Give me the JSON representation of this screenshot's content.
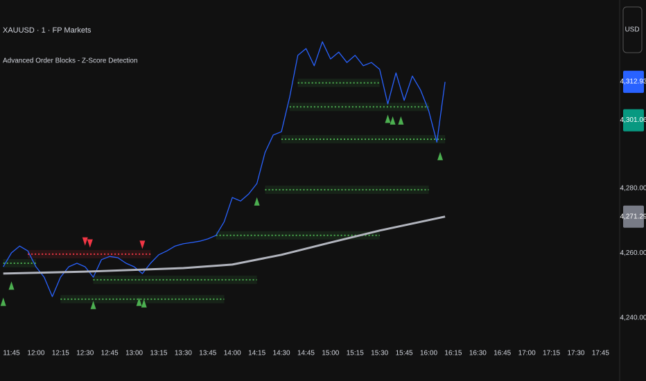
{
  "chart_data": {
    "type": "price",
    "title": "XAUUSD · 1 · FP Markets",
    "subtitle": "Advanced Order Blocks - Z-Score Detection",
    "currency": "USD",
    "xlim": [
      "11:38",
      "17:55"
    ],
    "xticks": [
      "11:45",
      "12:00",
      "12:15",
      "12:30",
      "12:45",
      "13:00",
      "13:15",
      "13:30",
      "13:45",
      "14:00",
      "14:15",
      "14:30",
      "14:45",
      "15:00",
      "15:15",
      "15:30",
      "15:45",
      "16:00",
      "16:15",
      "16:30",
      "16:45",
      "17:00",
      "17:15",
      "17:30",
      "17:45"
    ],
    "ylim": [
      4235.5,
      4338.2
    ],
    "yticks": [
      {
        "value": 4240,
        "label": "4,240.00"
      },
      {
        "value": 4260,
        "label": "4,260.00"
      },
      {
        "value": 4280,
        "label": "4,280.00"
      }
    ],
    "series": [
      {
        "color": "#2962ff",
        "x": [
          "11:40",
          "11:45",
          "11:50",
          "11:55",
          "12:00",
          "12:05",
          "12:10",
          "12:15",
          "12:20",
          "12:25",
          "12:30",
          "12:35",
          "12:40",
          "12:45",
          "12:50",
          "12:55",
          "13:00",
          "13:05",
          "13:10",
          "13:15",
          "13:20",
          "13:25",
          "13:30",
          "13:35",
          "13:40",
          "13:45",
          "13:50",
          "13:55",
          "14:00",
          "14:05",
          "14:10",
          "14:15",
          "14:20",
          "14:25",
          "14:30",
          "14:35",
          "14:40",
          "14:45",
          "14:50",
          "14:55",
          "15:00",
          "15:05",
          "15:10",
          "15:15",
          "15:20",
          "15:25",
          "15:30",
          "15:35",
          "15:40",
          "15:45",
          "15:50",
          "15:55",
          "16:00",
          "16:05",
          "16:10"
        ],
        "values": [
          4255.8,
          4260.1,
          4262.2,
          4260.7,
          4255.8,
          4252.6,
          4246.6,
          4252.6,
          4255.8,
          4256.9,
          4255.8,
          4252.6,
          4258.0,
          4259.0,
          4258.6,
          4256.9,
          4255.8,
          4253.7,
          4256.9,
          4259.5,
          4260.7,
          4262.2,
          4262.9,
          4263.3,
          4263.7,
          4264.4,
          4265.5,
          4269.7,
          4277.2,
          4276.1,
          4278.3,
          4281.5,
          4291.1,
          4296.5,
          4297.5,
          4308.2,
          4321.1,
          4323.2,
          4317.9,
          4325.3,
          4320.0,
          4322.1,
          4318.9,
          4321.1,
          4317.9,
          4318.9,
          4316.8,
          4306.1,
          4315.7,
          4307.2,
          4314.7,
          4310.4,
          4304.0,
          4294.3,
          4312.9
        ]
      },
      {
        "color": "#b2b5be",
        "x": [
          "11:40",
          "12:30",
          "13:30",
          "14:00",
          "14:30",
          "15:00",
          "15:30",
          "16:10"
        ],
        "values": [
          4253.7,
          4254.3,
          4255.4,
          4256.5,
          4259.5,
          4263.3,
          4267.0,
          4271.29
        ]
      }
    ],
    "zones": [
      {
        "start": "14:40",
        "end": "15:30",
        "level": 4312.6,
        "color": "#4caf50"
      },
      {
        "start": "14:35",
        "end": "16:00",
        "level": 4305.2,
        "color": "#4caf50"
      },
      {
        "start": "14:30",
        "end": "16:10",
        "level": 4295.2,
        "color": "#4caf50"
      },
      {
        "start": "14:20",
        "end": "16:00",
        "level": 4279.6,
        "color": "#4caf50"
      },
      {
        "start": "13:50",
        "end": "15:30",
        "level": 4265.5,
        "color": "#4caf50"
      },
      {
        "start": "12:35",
        "end": "14:15",
        "level": 4251.8,
        "color": "#4caf50"
      },
      {
        "start": "12:15",
        "end": "13:55",
        "level": 4245.8,
        "color": "#4caf50"
      },
      {
        "start": "11:40",
        "end": "12:00",
        "level": 4256.9,
        "color": "#4caf50"
      },
      {
        "start": "11:55",
        "end": "13:10",
        "level": 4259.7,
        "color": "#f23645"
      }
    ],
    "signals": [
      {
        "x": "11:40",
        "value": 4245.0,
        "direction": "up"
      },
      {
        "x": "11:45",
        "value": 4250.0,
        "direction": "up"
      },
      {
        "x": "12:35",
        "value": 4244.0,
        "direction": "up"
      },
      {
        "x": "13:03",
        "value": 4245.0,
        "direction": "up"
      },
      {
        "x": "13:06",
        "value": 4244.5,
        "direction": "up"
      },
      {
        "x": "14:15",
        "value": 4276.0,
        "direction": "up"
      },
      {
        "x": "15:35",
        "value": 4301.5,
        "direction": "up"
      },
      {
        "x": "15:38",
        "value": 4301.0,
        "direction": "up"
      },
      {
        "x": "15:43",
        "value": 4301.0,
        "direction": "up"
      },
      {
        "x": "16:07",
        "value": 4290.0,
        "direction": "up"
      },
      {
        "x": "12:30",
        "value": 4263.6,
        "direction": "down"
      },
      {
        "x": "12:33",
        "value": 4263.0,
        "direction": "down"
      },
      {
        "x": "13:05",
        "value": 4262.6,
        "direction": "down"
      }
    ],
    "price_labels": [
      {
        "value": 4312.93,
        "label": "4,312.93",
        "color": "#2962ff"
      },
      {
        "value": 4301.06,
        "label": "4,301.06",
        "color": "#089981"
      },
      {
        "value": 4271.29,
        "label": "4,271.29",
        "color": "#787b86"
      }
    ]
  }
}
